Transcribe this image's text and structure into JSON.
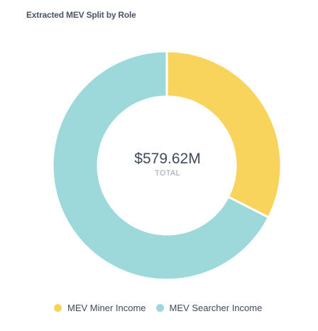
{
  "chart_data": {
    "type": "pie",
    "title": "Extracted MEV Split by Role",
    "center": {
      "value": "$579.62M",
      "label": "TOTAL"
    },
    "categories": [
      "MEV Miner Income",
      "MEV Searcher Income"
    ],
    "values": [
      32.5,
      67.5
    ],
    "colors": [
      "#f8d45c",
      "#9dd9db"
    ],
    "legend_position": "bottom"
  }
}
